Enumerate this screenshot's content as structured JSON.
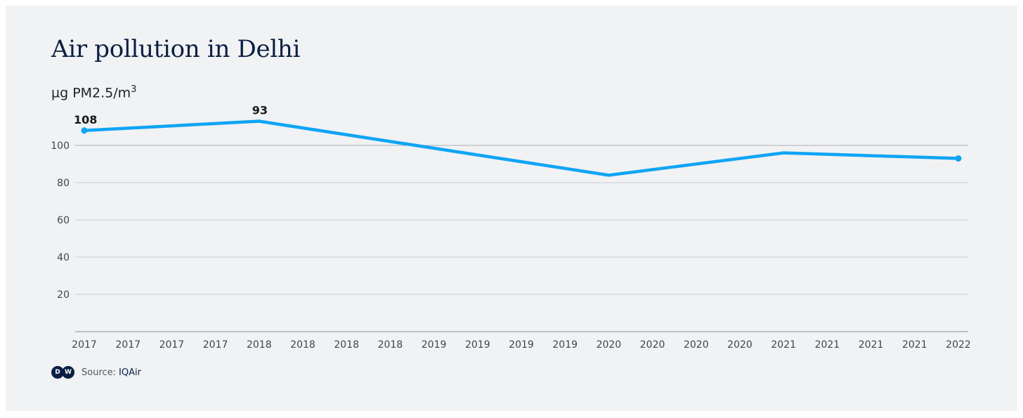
{
  "header": {
    "title": "Air pollution in Delhi",
    "unit_prefix": "µg PM2.5/m",
    "unit_sup": "3"
  },
  "footer": {
    "logo_text": [
      "D",
      "W"
    ],
    "source_label": "Source:",
    "source_name": "IQAir"
  },
  "colors": {
    "line": "#0ea5f5",
    "title": "#0a1f44",
    "grid": "#c8cbd2",
    "background": "#f1f2f4"
  },
  "chart_data": {
    "type": "line",
    "title": "Air pollution in Delhi",
    "ylabel": "µg PM2.5/m3",
    "xlabel": "",
    "ylim": [
      0,
      120
    ],
    "yticks": [
      20,
      40,
      60,
      80,
      100
    ],
    "grid": true,
    "categories": [
      "2017",
      "2017",
      "2017",
      "2017",
      "2018",
      "2018",
      "2018",
      "2018",
      "2019",
      "2019",
      "2019",
      "2019",
      "2020",
      "2020",
      "2020",
      "2020",
      "2021",
      "2021",
      "2021",
      "2021",
      "2022"
    ],
    "series": [
      {
        "x": [
          0,
          4,
          12,
          16,
          20
        ],
        "values": [
          108,
          113,
          84,
          96,
          93
        ]
      }
    ],
    "data_labels": [
      {
        "index": 0,
        "text": "108"
      },
      {
        "index": 4,
        "text": "93"
      }
    ]
  }
}
